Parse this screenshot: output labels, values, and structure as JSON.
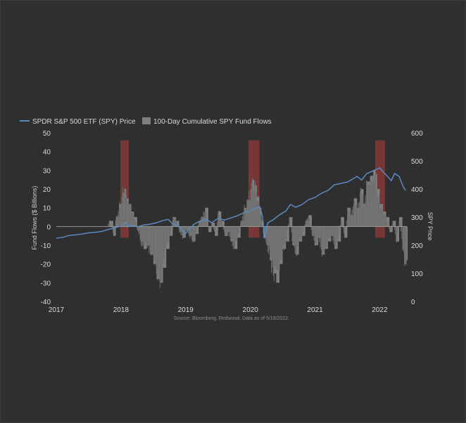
{
  "chart_data": {
    "type": "line",
    "legend": {
      "position": "top-left",
      "items": [
        {
          "label": "SPDR S&P 500 ETF (SPY) Price",
          "color": "#5b89bf",
          "kind": "line"
        },
        {
          "label": "100-Day Cumulative SPY Fund Flows",
          "color": "#808080",
          "kind": "bar"
        }
      ]
    },
    "ylabel_left": "Fund Flows ($ Billions)",
    "ylabel_right": "SPY Price",
    "ylim_left": [
      -40,
      50
    ],
    "ylim_right": [
      0,
      600
    ],
    "yticks_left": [
      "50",
      "40",
      "30",
      "20",
      "10",
      "0",
      "-10",
      "-20",
      "-30",
      "-40"
    ],
    "yticks_right": [
      "600",
      "500",
      "400",
      "300",
      "200",
      "100",
      "0"
    ],
    "xlim": [
      2017.0,
      2022.42
    ],
    "xticks": [
      "2017",
      "2018",
      "2019",
      "2020",
      "2021",
      "2022"
    ],
    "source": "Source: Bloomberg, Redwood. Data as of 5/19/2022.",
    "series": [
      {
        "name": "SPDR S&P 500 ETF (SPY) Price",
        "axis": "right",
        "color": "#5b89bf",
        "x": [
          2017.0,
          2017.1,
          2017.2,
          2017.3,
          2017.4,
          2017.5,
          2017.6,
          2017.7,
          2017.8,
          2017.9,
          2018.0,
          2018.08,
          2018.1,
          2018.17,
          2018.25,
          2018.35,
          2018.45,
          2018.55,
          2018.65,
          2018.73,
          2018.8,
          2018.88,
          2018.95,
          2018.98,
          2019.05,
          2019.15,
          2019.25,
          2019.33,
          2019.4,
          2019.5,
          2019.6,
          2019.7,
          2019.8,
          2019.9,
          2020.0,
          2020.08,
          2020.15,
          2020.19,
          2020.22,
          2020.27,
          2020.35,
          2020.45,
          2020.55,
          2020.62,
          2020.7,
          2020.8,
          2020.9,
          2021.0,
          2021.1,
          2021.2,
          2021.3,
          2021.4,
          2021.5,
          2021.6,
          2021.65,
          2021.72,
          2021.8,
          2021.9,
          2022.0,
          2022.05,
          2022.12,
          2022.18,
          2022.23,
          2022.3,
          2022.36,
          2022.4
        ],
        "values": [
          225,
          228,
          235,
          237,
          240,
          244,
          246,
          249,
          256,
          262,
          268,
          283,
          265,
          272,
          265,
          272,
          275,
          280,
          288,
          292,
          275,
          270,
          255,
          236,
          258,
          278,
          288,
          291,
          280,
          295,
          290,
          297,
          305,
          316,
          322,
          332,
          335,
          300,
          225,
          280,
          290,
          308,
          322,
          345,
          335,
          345,
          362,
          370,
          385,
          395,
          415,
          420,
          425,
          438,
          445,
          432,
          455,
          465,
          475,
          462,
          445,
          430,
          455,
          445,
          410,
          395
        ]
      },
      {
        "name": "100-Day Cumulative SPY Fund Flows",
        "axis": "left",
        "color": "#808080",
        "x": [
          2017.0,
          2017.15,
          2017.3,
          2017.45,
          2017.6,
          2017.75,
          2017.82,
          2017.88,
          2017.92,
          2017.97,
          2018.02,
          2018.05,
          2018.08,
          2018.12,
          2018.16,
          2018.2,
          2018.25,
          2018.3,
          2018.35,
          2018.4,
          2018.45,
          2018.5,
          2018.55,
          2018.6,
          2018.65,
          2018.7,
          2018.75,
          2018.8,
          2018.85,
          2018.9,
          2018.95,
          2019.0,
          2019.05,
          2019.1,
          2019.15,
          2019.2,
          2019.25,
          2019.3,
          2019.35,
          2019.4,
          2019.45,
          2019.5,
          2019.55,
          2019.6,
          2019.65,
          2019.7,
          2019.75,
          2019.8,
          2019.85,
          2019.9,
          2019.95,
          2020.0,
          2020.03,
          2020.06,
          2020.1,
          2020.14,
          2020.17,
          2020.2,
          2020.25,
          2020.3,
          2020.35,
          2020.4,
          2020.45,
          2020.5,
          2020.55,
          2020.6,
          2020.65,
          2020.7,
          2020.75,
          2020.8,
          2020.85,
          2020.9,
          2020.95,
          2021.0,
          2021.05,
          2021.1,
          2021.15,
          2021.2,
          2021.25,
          2021.3,
          2021.35,
          2021.4,
          2021.45,
          2021.5,
          2021.55,
          2021.6,
          2021.65,
          2021.7,
          2021.75,
          2021.8,
          2021.85,
          2021.9,
          2021.93,
          2021.96,
          2022.0,
          2022.05,
          2022.1,
          2022.15,
          2022.2,
          2022.25,
          2022.3,
          2022.35,
          2022.38,
          2022.41
        ],
        "values": [
          0,
          0,
          0,
          0,
          0,
          0,
          3,
          -5,
          5,
          12,
          18,
          20,
          15,
          12,
          8,
          5,
          -2,
          -8,
          -12,
          -10,
          -15,
          -20,
          -28,
          -30,
          -22,
          -12,
          -5,
          5,
          3,
          -3,
          -6,
          -2,
          -5,
          -8,
          -4,
          3,
          5,
          10,
          -3,
          2,
          -5,
          8,
          3,
          -5,
          -3,
          -8,
          -12,
          -6,
          3,
          10,
          14,
          20,
          25,
          22,
          16,
          10,
          3,
          -6,
          -10,
          -18,
          -25,
          -30,
          -20,
          -12,
          -8,
          5,
          -10,
          -15,
          -8,
          -5,
          3,
          6,
          -5,
          -10,
          -6,
          -15,
          -12,
          -8,
          -5,
          -12,
          -8,
          5,
          -6,
          10,
          6,
          15,
          10,
          20,
          12,
          24,
          27,
          30,
          28,
          20,
          12,
          8,
          5,
          -3,
          3,
          -8,
          5,
          -12,
          -20,
          -18
        ]
      }
    ],
    "highlights": [
      {
        "x0": 2017.99,
        "x1": 2018.12,
        "color": "#b43c3c"
      },
      {
        "x0": 2019.97,
        "x1": 2020.14,
        "color": "#b43c3c"
      },
      {
        "x0": 2021.93,
        "x1": 2022.08,
        "color": "#b43c3c"
      }
    ]
  }
}
